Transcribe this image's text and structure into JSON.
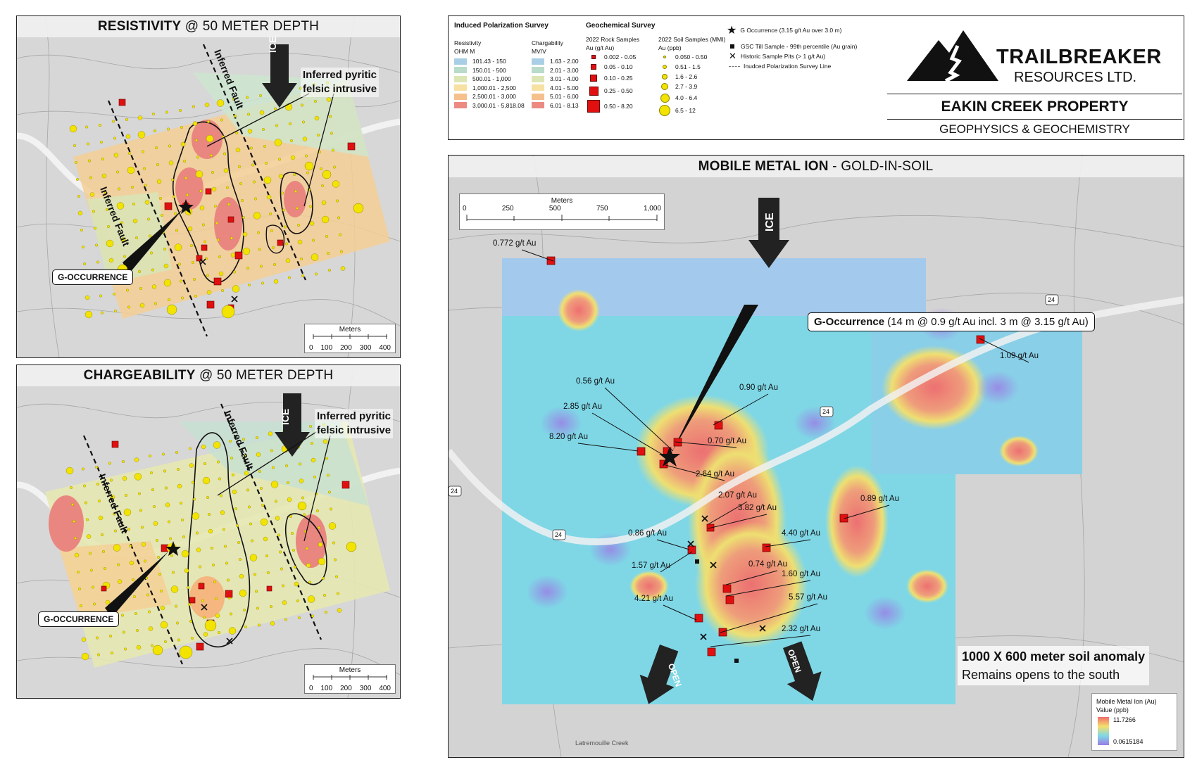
{
  "panels": {
    "resistivity": {
      "title_bold": "RESISTIVITY",
      "title_rest": " @ 50 METER DEPTH"
    },
    "chargeability": {
      "title_bold": "CHARGEABILITY",
      "title_rest": " @ 50 METER DEPTH"
    },
    "mmi": {
      "title_bold": "MOBILE METAL ION",
      "title_rest": " - GOLD-IN-SOIL"
    }
  },
  "map_labels": {
    "ice": "ICE",
    "inferred_fault": "Inferred Fault",
    "pyritic_line1": "Inferred pyritic",
    "pyritic_line2": "felsic intrusive",
    "g_occurrence": "G-OCCURRENCE",
    "open": "OPEN",
    "creek": "Latremouille Creek"
  },
  "scale_small": {
    "title": "Meters",
    "ticks": [
      "0",
      "100",
      "200",
      "300",
      "400"
    ]
  },
  "scale_large": {
    "title": "Meters",
    "ticks": [
      "0",
      "250",
      "500",
      "750",
      "1,000"
    ]
  },
  "legend": {
    "ip_title": "Induced Polarization Survey",
    "resistivity_label": "Resistivity",
    "resistivity_unit": "OHM M",
    "resistivity_classes": [
      {
        "label": "101.43 - 150",
        "color": "#a9cfe6"
      },
      {
        "label": "150.01 - 500",
        "color": "#b9dbc9"
      },
      {
        "label": "500.01 - 1,000",
        "color": "#dbe6b4"
      },
      {
        "label": "1,000.01 - 2,500",
        "color": "#f6e1a3"
      },
      {
        "label": "2,500.01 - 3,000",
        "color": "#f5c08c"
      },
      {
        "label": "3,000.01 - 5,818.08",
        "color": "#ec8a82"
      }
    ],
    "chargeability_label": "Chargability",
    "chargeability_unit": "MV/V",
    "chargeability_classes": [
      {
        "label": "1.63 - 2.00",
        "color": "#a9cfe6"
      },
      {
        "label": "2.01 - 3.00",
        "color": "#b9dbc9"
      },
      {
        "label": "3.01 - 4.00",
        "color": "#dbe6b4"
      },
      {
        "label": "4.01 - 5.00",
        "color": "#f6e1a3"
      },
      {
        "label": "5.01 - 6.00",
        "color": "#f5c08c"
      },
      {
        "label": "6.01 - 8.13",
        "color": "#ec8a82"
      }
    ],
    "geochem_title": "Geochemical Survey",
    "rock_title": "2022 Rock Samples",
    "rock_unit": "Au (g/t Au)",
    "rock_classes": [
      "0.002 - 0.05",
      "0.05 - 0.10",
      "0.10 - 0.25",
      "0.25 - 0.50",
      "0.50 - 8.20"
    ],
    "soil_title": "2022 Soil Samples (MMI)",
    "soil_unit": "Au (ppb)",
    "soil_classes": [
      "0.050 - 0.50",
      "0.51 - 1.5",
      "1.6 - 2.6",
      "2.7 - 3.9",
      "4.0 - 6.4",
      "6.5 - 12"
    ],
    "symbols": [
      "G Occurrence (3.15 g/t Au over 3.0 m)",
      "GSC Till Sample - 99th percentile (Au grain)",
      "Historic Sample Pits (> 1 g/t Au)",
      "Inudced Polarization Survey Line"
    ]
  },
  "brand": {
    "name": "TRAILBREAKER",
    "sub": "RESOURCES LTD.",
    "property": "EAKIN CREEK PROPERTY",
    "subtitle": "GEOPHYSICS & GEOCHEMISTRY"
  },
  "mmi": {
    "callout_bold": "G-Occurrence",
    "callout_rest": " (14 m @ 0.9 g/t Au incl. 3 m @ 3.15 g/t Au)",
    "anomaly_line1": "1000 X 600 meter soil anomaly",
    "anomaly_line2": "Remains opens to the south",
    "legend_title": "Mobile Metal Ion (Au)",
    "legend_sub": "Value (ppb)",
    "legend_max": "11.7266",
    "legend_min": "0.0615184",
    "road": "24",
    "grades": [
      {
        "text": "0.772 g/t Au",
        "lx": 700,
        "ly": 340
      },
      {
        "text": "1.09 g/t Au",
        "lx": 1420,
        "ly": 500
      },
      {
        "text": "0.56 g/t Au",
        "lx": 818,
        "ly": 536
      },
      {
        "text": "0.90 g/t Au",
        "lx": 1050,
        "ly": 545
      },
      {
        "text": "2.85 g/t Au",
        "lx": 800,
        "ly": 572
      },
      {
        "text": "8.20 g/t Au",
        "lx": 780,
        "ly": 615
      },
      {
        "text": "0.70 g/t Au",
        "lx": 1005,
        "ly": 621
      },
      {
        "text": "2.64 g/t Au",
        "lx": 988,
        "ly": 668
      },
      {
        "text": "2.07 g/t Au",
        "lx": 1020,
        "ly": 698
      },
      {
        "text": "3.82 g/t Au",
        "lx": 1048,
        "ly": 716
      },
      {
        "text": "0.89 g/t Au",
        "lx": 1222,
        "ly": 703
      },
      {
        "text": "0.86 g/t Au",
        "lx": 892,
        "ly": 752
      },
      {
        "text": "4.40 g/t Au",
        "lx": 1110,
        "ly": 752
      },
      {
        "text": "1.57 g/t Au",
        "lx": 897,
        "ly": 798
      },
      {
        "text": "0.74 g/t Au",
        "lx": 1063,
        "ly": 796
      },
      {
        "text": "1.60 g/t Au",
        "lx": 1110,
        "ly": 810
      },
      {
        "text": "4.21 g/t Au",
        "lx": 901,
        "ly": 845
      },
      {
        "text": "5.57 g/t Au",
        "lx": 1120,
        "ly": 843
      },
      {
        "text": "2.32 g/t Au",
        "lx": 1110,
        "ly": 888
      }
    ]
  }
}
